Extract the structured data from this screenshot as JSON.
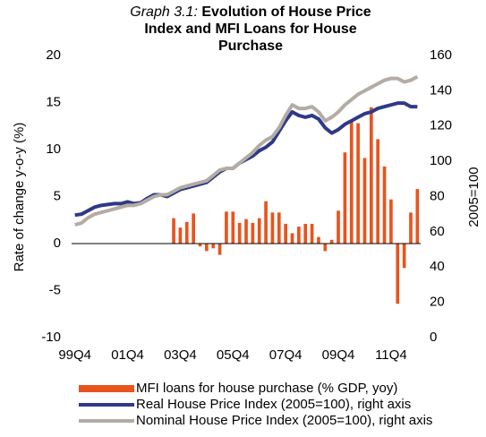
{
  "chart_data": {
    "type": "bar_line",
    "title_label": "Graph 3.1:",
    "title": "Evolution of House Price Index and MFI Loans for House Purchase",
    "ylabel": "Rate of change y-o-y (%)",
    "y2label": "2005=100",
    "categories": [
      "99Q4",
      null,
      null,
      null,
      null,
      null,
      null,
      null,
      "01Q4",
      null,
      null,
      null,
      null,
      null,
      null,
      null,
      "03Q4",
      null,
      null,
      null,
      null,
      null,
      null,
      null,
      "05Q4",
      null,
      null,
      null,
      null,
      null,
      null,
      null,
      "07Q4",
      null,
      null,
      null,
      null,
      null,
      null,
      null,
      "09Q4",
      null,
      null,
      null,
      null,
      null,
      null,
      null,
      "11Q4",
      null,
      null,
      null,
      null
    ],
    "ylim": [
      -10,
      20
    ],
    "yticks": [
      -10,
      -5,
      0,
      5,
      10,
      15,
      20
    ],
    "y2lim": [
      0,
      160
    ],
    "y2ticks": [
      0,
      20,
      40,
      60,
      80,
      100,
      120,
      140,
      160
    ],
    "series": [
      {
        "name": "MFI loans for house purchase (% GDP, yoy)",
        "type": "bar",
        "color": "#e8541e",
        "values": [
          null,
          null,
          null,
          null,
          null,
          null,
          null,
          null,
          null,
          null,
          null,
          null,
          null,
          null,
          null,
          2.7,
          1.7,
          2.3,
          3.2,
          -0.3,
          -0.8,
          -0.5,
          -1.2,
          3.4,
          3.4,
          2.2,
          2.6,
          2.2,
          2.7,
          4.5,
          3.3,
          3.3,
          2.1,
          1.1,
          1.8,
          2.1,
          2.1,
          0.7,
          -0.8,
          0.4,
          3.5,
          9.7,
          13.0,
          12.8,
          9.1,
          14.5,
          11.1,
          8.2,
          4.7,
          -6.4,
          -2.6,
          3.3,
          5.8
        ]
      },
      {
        "name": "Real House Price Index (2005=100), right axis",
        "type": "line",
        "axis": "y2",
        "color": "#2e3a87",
        "values": [
          69.5,
          70,
          72,
          74,
          75,
          75.5,
          76,
          76,
          77,
          76,
          76.5,
          79,
          81,
          81,
          80,
          82,
          84,
          85,
          86,
          87,
          88,
          91,
          94,
          96,
          96,
          99,
          101,
          103,
          106,
          108,
          111,
          117,
          123,
          128,
          126,
          125,
          126,
          124,
          119,
          116,
          118,
          121,
          123,
          125,
          127,
          128,
          130,
          131,
          132,
          133,
          133,
          131,
          131
        ]
      },
      {
        "name": "Nominal House Price Index (2005=100), right axis",
        "type": "line",
        "axis": "y2",
        "color": "#b4aca4",
        "values": [
          64,
          65,
          68,
          70,
          71,
          72,
          73,
          74,
          75,
          75,
          76,
          78,
          80,
          81,
          81,
          83,
          85,
          86,
          87,
          88,
          89,
          92,
          95,
          96,
          96,
          99,
          102,
          105,
          109,
          112,
          114,
          119,
          126,
          132,
          130,
          130,
          131,
          128,
          123,
          125,
          128,
          132,
          135,
          138,
          140,
          142,
          144,
          146,
          147,
          147,
          145,
          146,
          148
        ]
      }
    ],
    "zero_line": true
  }
}
